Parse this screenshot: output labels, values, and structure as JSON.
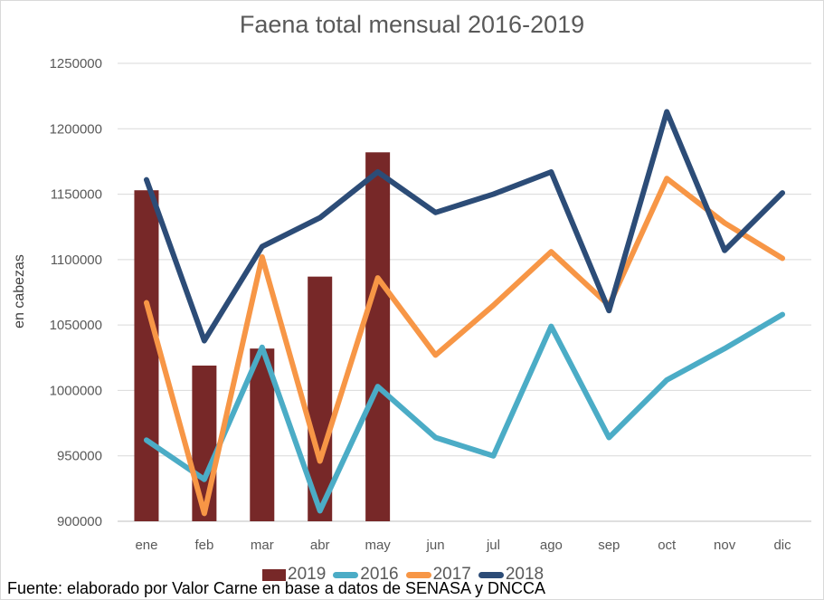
{
  "chart_data": {
    "type": "bar+line",
    "title": "Faena total mensual 2016-2019",
    "xlabel": "",
    "ylabel": "en cabezas",
    "ylim": [
      900000,
      1250000
    ],
    "yticks": [
      900000,
      950000,
      1000000,
      1050000,
      1100000,
      1150000,
      1200000,
      1250000
    ],
    "grid": true,
    "legend_position": "bottom",
    "categories": [
      "ene",
      "feb",
      "mar",
      "abr",
      "may",
      "jun",
      "jul",
      "ago",
      "sep",
      "oct",
      "nov",
      "dic"
    ],
    "series": [
      {
        "name": "2019",
        "kind": "bar",
        "color": "#772828",
        "values": [
          1153000,
          1019000,
          1032000,
          1087000,
          1182000,
          null,
          null,
          null,
          null,
          null,
          null,
          null
        ]
      },
      {
        "name": "2016",
        "kind": "line",
        "color": "#4bacc6",
        "values": [
          962000,
          932000,
          1033000,
          908000,
          1003000,
          964000,
          950000,
          1049000,
          964000,
          1008000,
          1032000,
          1058000
        ]
      },
      {
        "name": "2017",
        "kind": "line",
        "color": "#f79646",
        "values": [
          1067000,
          906000,
          1102000,
          946000,
          1086000,
          1027000,
          1065000,
          1106000,
          1065000,
          1162000,
          1128000,
          1101000
        ]
      },
      {
        "name": "2018",
        "kind": "line",
        "color": "#2c4c77",
        "values": [
          1161000,
          1038000,
          1110000,
          1132000,
          1167000,
          1136000,
          1150000,
          1167000,
          1061000,
          1213000,
          1107000,
          1151000
        ]
      }
    ]
  },
  "source": "Fuente: elaborado por Valor Carne en base a datos de SENASA y DNCCA"
}
